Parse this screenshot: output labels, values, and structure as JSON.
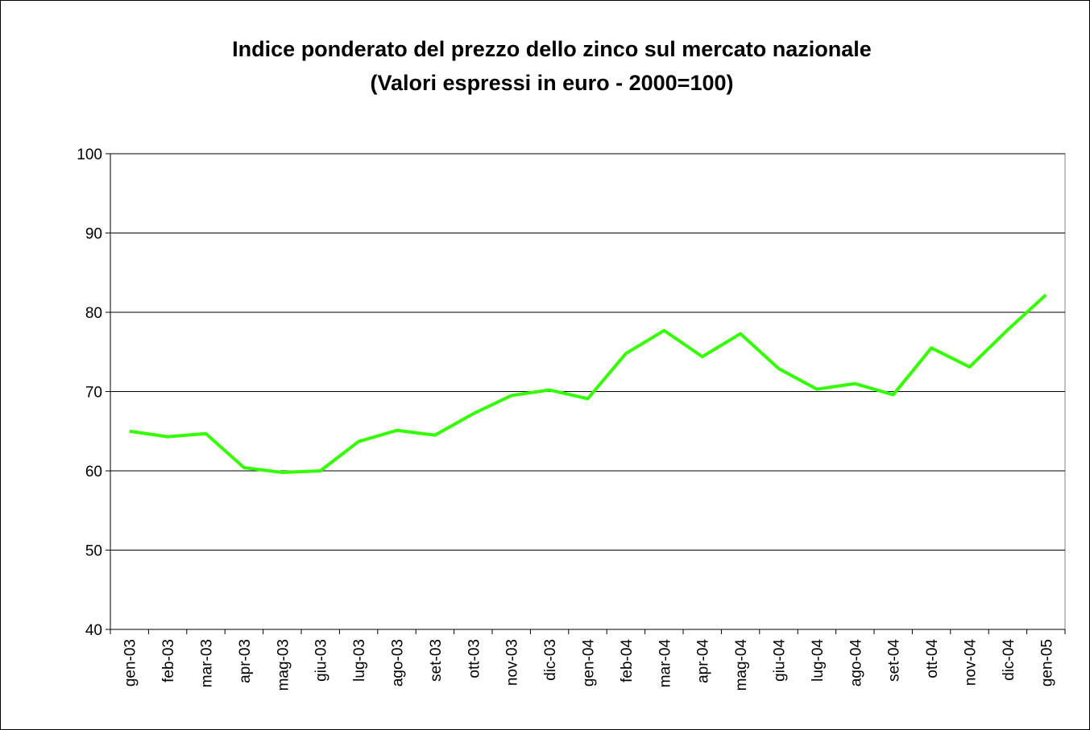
{
  "chart_data": {
    "type": "line",
    "title": "Indice ponderato del prezzo dello zinco sul mercato nazionale",
    "subtitle": "(Valori espressi in euro - 2000=100)",
    "categories": [
      "gen-03",
      "feb-03",
      "mar-03",
      "apr-03",
      "mag-03",
      "giu-03",
      "lug-03",
      "ago-03",
      "set-03",
      "ott-03",
      "nov-03",
      "dic-03",
      "gen-04",
      "feb-04",
      "mar-04",
      "apr-04",
      "mag-04",
      "giu-04",
      "lug-04",
      "ago-04",
      "set-04",
      "ott-04",
      "nov-04",
      "dic-04",
      "gen-05"
    ],
    "series": [
      {
        "name": "Indice",
        "color": "#33ff00",
        "values": [
          65.0,
          64.3,
          64.7,
          60.4,
          59.8,
          60.0,
          63.7,
          65.1,
          64.5,
          67.2,
          69.5,
          70.2,
          69.1,
          74.8,
          77.7,
          74.4,
          77.3,
          72.9,
          70.3,
          71.0,
          69.6,
          75.5,
          73.1,
          77.8,
          82.2
        ]
      }
    ],
    "ylim": [
      40,
      100
    ],
    "yticks": [
      40,
      50,
      60,
      70,
      80,
      90,
      100
    ],
    "grid": true,
    "legend": false
  }
}
